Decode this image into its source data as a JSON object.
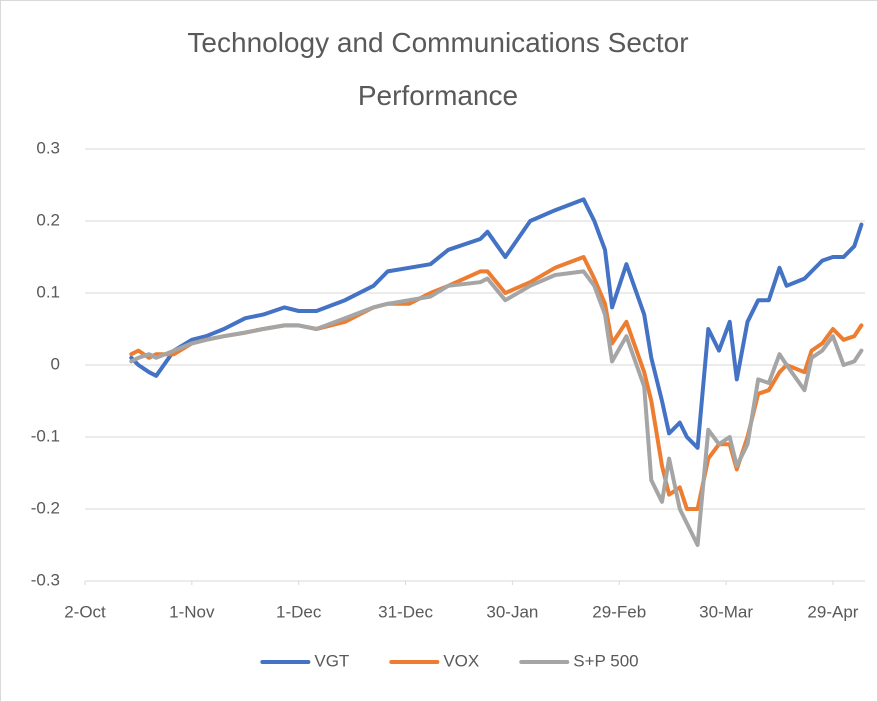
{
  "chart_data": {
    "type": "line",
    "title": "Technology and Communications Sector Performance",
    "x": [
      "15-Oct",
      "17-Oct",
      "20-Oct",
      "22-Oct",
      "27-Oct",
      "1-Nov",
      "5-Nov",
      "10-Nov",
      "16-Nov",
      "21-Nov",
      "27-Nov",
      "1-Dec",
      "6-Dec",
      "14-Dec",
      "22-Dec",
      "26-Dec",
      "1-Jan",
      "7-Jan",
      "12-Jan",
      "21-Jan",
      "23-Jan",
      "28-Jan",
      "4-Feb",
      "11-Feb",
      "19-Feb",
      "22-Feb",
      "25-Feb",
      "27-Feb",
      "2-Mar",
      "7-Mar",
      "9-Mar",
      "12-Mar",
      "14-Mar",
      "17-Mar",
      "19-Mar",
      "22-Mar",
      "25-Mar",
      "28-Mar",
      "31-Mar",
      "2-Apr",
      "5-Apr",
      "8-Apr",
      "11-Apr",
      "14-Apr",
      "16-Apr",
      "21-Apr",
      "23-Apr",
      "26-Apr",
      "29-Apr",
      "2-May",
      "5-May",
      "7-May"
    ],
    "series": [
      {
        "name": "VGT",
        "color": "#4472C4",
        "values": [
          0.01,
          0.0,
          -0.01,
          -0.015,
          0.02,
          0.035,
          0.04,
          0.05,
          0.065,
          0.07,
          0.08,
          0.075,
          0.075,
          0.09,
          0.11,
          0.13,
          0.135,
          0.14,
          0.16,
          0.175,
          0.185,
          0.15,
          0.2,
          0.215,
          0.23,
          0.2,
          0.16,
          0.08,
          0.14,
          0.07,
          0.01,
          -0.05,
          -0.095,
          -0.08,
          -0.1,
          -0.115,
          0.05,
          0.02,
          0.06,
          -0.02,
          0.06,
          0.09,
          0.09,
          0.135,
          0.11,
          0.12,
          0.13,
          0.145,
          0.15,
          0.15,
          0.165,
          0.195
        ]
      },
      {
        "name": "VOX",
        "color": "#ED7D31",
        "values": [
          0.015,
          0.02,
          0.01,
          0.015,
          0.015,
          0.03,
          0.035,
          0.04,
          0.045,
          0.05,
          0.055,
          0.055,
          0.05,
          0.06,
          0.08,
          0.085,
          0.085,
          0.1,
          0.11,
          0.13,
          0.13,
          0.1,
          0.115,
          0.135,
          0.15,
          0.12,
          0.085,
          0.03,
          0.06,
          -0.01,
          -0.05,
          -0.14,
          -0.18,
          -0.17,
          -0.2,
          -0.2,
          -0.13,
          -0.11,
          -0.11,
          -0.145,
          -0.1,
          -0.04,
          -0.035,
          -0.01,
          0.0,
          -0.01,
          0.02,
          0.03,
          0.05,
          0.035,
          0.04,
          0.055
        ]
      },
      {
        "name": "S+P 500",
        "color": "#A5A5A5",
        "values": [
          0.005,
          0.01,
          0.015,
          0.01,
          0.02,
          0.03,
          0.035,
          0.04,
          0.045,
          0.05,
          0.055,
          0.055,
          0.05,
          0.065,
          0.08,
          0.085,
          0.09,
          0.095,
          0.11,
          0.115,
          0.12,
          0.09,
          0.11,
          0.125,
          0.13,
          0.11,
          0.07,
          0.005,
          0.04,
          -0.03,
          -0.16,
          -0.19,
          -0.13,
          -0.2,
          -0.22,
          -0.25,
          -0.09,
          -0.11,
          -0.1,
          -0.14,
          -0.11,
          -0.02,
          -0.025,
          0.015,
          0.0,
          -0.035,
          0.01,
          0.02,
          0.04,
          0.0,
          0.005,
          0.02
        ]
      }
    ],
    "xlim": [
      "2-Oct",
      "8-May"
    ],
    "xticks": [
      "2-Oct",
      "1-Nov",
      "1-Dec",
      "31-Dec",
      "30-Jan",
      "29-Feb",
      "30-Mar",
      "29-Apr"
    ],
    "ylim": [
      -0.3,
      0.3
    ],
    "yticks": [
      -0.3,
      -0.2,
      -0.1,
      0,
      0.1,
      0.2,
      0.3
    ],
    "grid": true,
    "legend": "bottom"
  }
}
